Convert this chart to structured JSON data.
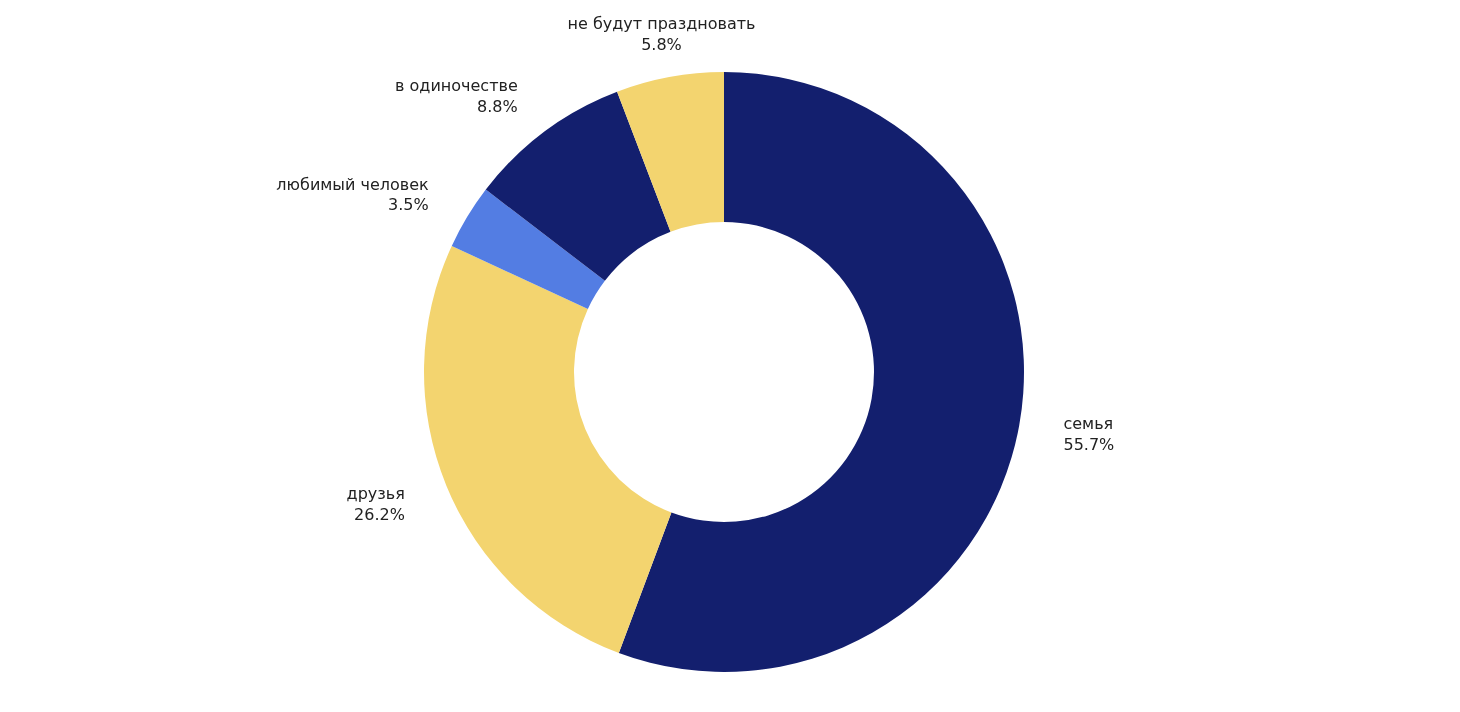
{
  "chart_data": {
    "type": "donut",
    "categories": [
      "семья",
      "друзья",
      "любимый человек",
      "в одиночестве",
      "не будут праздновать"
    ],
    "values": [
      55.7,
      26.2,
      3.5,
      8.8,
      5.8
    ],
    "colors": [
      "#131f6e",
      "#f3d46f",
      "#537de3",
      "#131f6e",
      "#f3d46f"
    ],
    "value_labels": [
      "55.7%",
      "26.2%",
      "3.5%",
      "8.8%",
      "5.8%"
    ],
    "legend": false
  }
}
